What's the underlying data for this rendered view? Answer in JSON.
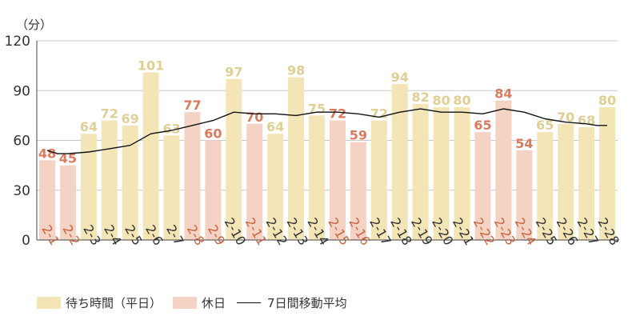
{
  "chart_data": {
    "type": "bar",
    "unit_label": "（分）",
    "ylim": [
      0,
      120
    ],
    "yticks": [
      0,
      30,
      60,
      90,
      120
    ],
    "grid": true,
    "categories": [
      "2-1",
      "2-2",
      "2-3",
      "2-4",
      "2-5",
      "2-6",
      "2-7",
      "2-8",
      "2-9",
      "2-10",
      "2-11",
      "2-12",
      "2-13",
      "2-14",
      "2-15",
      "2-16",
      "2-17",
      "2-18",
      "2-19",
      "2-20",
      "2-21",
      "2-22",
      "2-23",
      "2-24",
      "2-25",
      "2-26",
      "2-27",
      "2-28"
    ],
    "values": [
      48,
      45,
      64,
      72,
      69,
      101,
      63,
      77,
      60,
      97,
      70,
      64,
      98,
      75,
      72,
      59,
      72,
      94,
      82,
      80,
      80,
      65,
      84,
      54,
      65,
      70,
      68,
      80
    ],
    "holiday": [
      true,
      true,
      false,
      false,
      false,
      false,
      false,
      true,
      true,
      false,
      true,
      false,
      false,
      false,
      true,
      true,
      false,
      false,
      false,
      false,
      false,
      true,
      true,
      true,
      false,
      false,
      false,
      false
    ],
    "moving_average": [
      54,
      52,
      52,
      53,
      55,
      57,
      64,
      66,
      69,
      72,
      77,
      76,
      76,
      75,
      77,
      77,
      76,
      74,
      77,
      79,
      77,
      77,
      76,
      79,
      77,
      73,
      71,
      70,
      69,
      69
    ],
    "ma_x": [
      1,
      1.5,
      2,
      3,
      4,
      5,
      6,
      7,
      8,
      9,
      10,
      11,
      12,
      13,
      14,
      15,
      16,
      17,
      18,
      19,
      20,
      21,
      22,
      23,
      24,
      25,
      26,
      27,
      27.5,
      28
    ],
    "series": [
      {
        "name": "待ち時間（平日）",
        "color": "#f3e5b6"
      },
      {
        "name": "休日",
        "color": "#f4d2c4"
      },
      {
        "name": "7日間移動平均",
        "color": "#111111"
      }
    ],
    "label_color": "#e0cf94",
    "holiday_label_color": "#d97b5c",
    "holiday_tick_color": "#c9643f",
    "tick_color": "#333333",
    "grid_color": "#c8c8c8",
    "legend_position": "bottom-left"
  }
}
